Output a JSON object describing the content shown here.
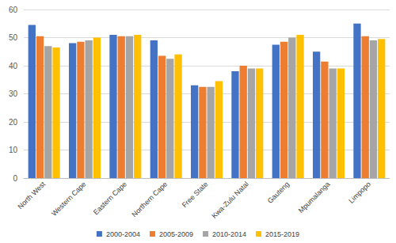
{
  "chart_data": {
    "type": "bar",
    "categories": [
      "North West",
      "Western Cape",
      "Eastern Cape",
      "Northern Cape",
      "Free State",
      "Kwa-Zulu Natal",
      "Gauteng",
      "Mpumalanga",
      "Limpopo"
    ],
    "series": [
      {
        "name": "2000-2004",
        "color": "#4472c4",
        "values": [
          54.5,
          48,
          51,
          49,
          33,
          38,
          47.5,
          45,
          55
        ]
      },
      {
        "name": "2005-2009",
        "color": "#ed7d31",
        "values": [
          50.5,
          48.5,
          50.5,
          43.5,
          32.5,
          40,
          48.5,
          41.5,
          50.5
        ]
      },
      {
        "name": "2010-2014",
        "color": "#a5a5a5",
        "values": [
          47,
          49,
          50.5,
          42.5,
          32.5,
          39,
          50,
          39,
          49
        ]
      },
      {
        "name": "2015-2019",
        "color": "#ffc000",
        "values": [
          46.5,
          50,
          51,
          44,
          34.5,
          39,
          51,
          39,
          49.5
        ]
      }
    ],
    "ylim": [
      0,
      60
    ],
    "yticks": [
      0,
      10,
      20,
      30,
      40,
      50,
      60
    ],
    "grid": true,
    "legend": "bottom"
  }
}
